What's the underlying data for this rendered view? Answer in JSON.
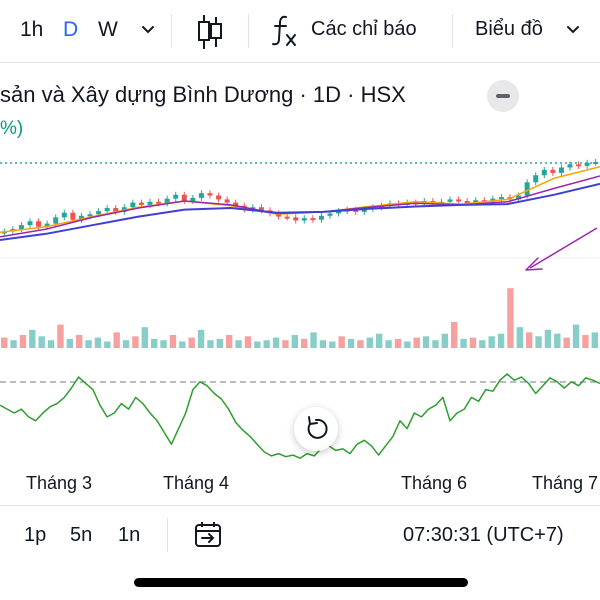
{
  "toolbar": {
    "intervals": [
      "1h",
      "D",
      "W"
    ],
    "active_interval": "D",
    "indicators_label": "Các chỉ báo",
    "chart_type_label": "Biểu đồ",
    "accent": "#2962ff"
  },
  "symbol": {
    "title": "sản và Xây dựng Bình Dương · 1D · HSX",
    "change_fragment": "%)",
    "up_color": "#26a69a",
    "down_color": "#ef5350"
  },
  "time_axis": {
    "months": [
      "Tháng 3",
      "Tháng 4",
      "Tháng 6",
      "Tháng 7"
    ]
  },
  "footer": {
    "ranges": [
      "1p",
      "5n",
      "1n"
    ],
    "clock": "07:30:31 (UTC+7)"
  },
  "chart_data": {
    "type": "candlestick",
    "series": [
      {
        "name": "price",
        "values": [
          0.11,
          0.14,
          0.19,
          0.24,
          0.17,
          0.21,
          0.29,
          0.35,
          0.26,
          0.31,
          0.33,
          0.37,
          0.41,
          0.36,
          0.42,
          0.48,
          0.45,
          0.49,
          0.47,
          0.53,
          0.58,
          0.5,
          0.54,
          0.6,
          0.57,
          0.52,
          0.48,
          0.44,
          0.39,
          0.42,
          0.38,
          0.34,
          0.3,
          0.29,
          0.25,
          0.28,
          0.26,
          0.31,
          0.34,
          0.37,
          0.39,
          0.36,
          0.4,
          0.42,
          0.44,
          0.47,
          0.45,
          0.48,
          0.46,
          0.5,
          0.47,
          0.49,
          0.52,
          0.5,
          0.48,
          0.51,
          0.49,
          0.53,
          0.55,
          0.52,
          0.57,
          0.74,
          0.83,
          0.9,
          0.86,
          0.93,
          0.97,
          0.95,
          0.99,
          1.0
        ]
      },
      {
        "name": "ma-orange",
        "values": [
          0.1,
          0.17,
          0.3,
          0.42,
          0.5,
          0.44,
          0.33,
          0.36,
          0.43,
          0.49,
          0.46,
          0.52,
          0.79,
          0.94
        ]
      },
      {
        "name": "ma-purple",
        "values": [
          0.04,
          0.14,
          0.29,
          0.41,
          0.5,
          0.45,
          0.34,
          0.36,
          0.42,
          0.47,
          0.45,
          0.49,
          0.66,
          0.82
        ]
      },
      {
        "name": "ma-blue",
        "values": [
          0.0,
          0.08,
          0.19,
          0.3,
          0.39,
          0.41,
          0.35,
          0.36,
          0.4,
          0.43,
          0.45,
          0.46,
          0.58,
          0.72
        ]
      },
      {
        "name": "volume",
        "values": [
          0.4,
          0.3,
          0.5,
          0.7,
          0.45,
          0.3,
          0.9,
          0.35,
          0.5,
          0.3,
          0.4,
          0.25,
          0.6,
          0.3,
          0.45,
          0.8,
          0.35,
          0.3,
          0.5,
          0.25,
          0.4,
          0.7,
          0.3,
          0.35,
          0.5,
          0.3,
          0.45,
          0.25,
          0.3,
          0.4,
          0.3,
          0.5,
          0.35,
          0.6,
          0.3,
          0.25,
          0.45,
          0.35,
          0.3,
          0.4,
          0.55,
          0.3,
          0.35,
          0.25,
          0.4,
          0.45,
          0.3,
          0.55,
          1.0,
          0.35,
          0.4,
          0.3,
          0.45,
          0.55,
          2.3,
          0.8,
          0.6,
          0.45,
          0.7,
          0.55,
          0.4,
          0.9,
          0.5,
          0.6
        ]
      },
      {
        "name": "oscillator",
        "values": [
          0.6,
          0.55,
          0.5,
          0.55,
          0.45,
          0.4,
          0.5,
          0.58,
          0.62,
          0.7,
          0.82,
          0.96,
          0.88,
          0.8,
          0.6,
          0.45,
          0.5,
          0.62,
          0.55,
          0.7,
          0.62,
          0.5,
          0.4,
          0.25,
          0.1,
          0.3,
          0.5,
          0.8,
          0.9,
          0.85,
          0.75,
          0.68,
          0.55,
          0.38,
          0.28,
          0.2,
          0.1,
          0.0,
          -0.05,
          -0.02,
          -0.06,
          -0.04,
          -0.08,
          -0.02,
          -0.05,
          0.05,
          0.08,
          0.02,
          0.04,
          -0.02,
          0.1,
          0.15,
          0.08,
          -0.04,
          0.08,
          0.2,
          0.4,
          0.3,
          0.5,
          0.45,
          0.55,
          0.6,
          0.7,
          0.4,
          0.5,
          0.55,
          0.7,
          0.65,
          0.8,
          0.78,
          0.92,
          1.0,
          0.92,
          0.96,
          0.88,
          0.75,
          0.85,
          0.95,
          0.9,
          0.82,
          0.9,
          0.85,
          0.95,
          0.92,
          0.88
        ]
      }
    ]
  }
}
